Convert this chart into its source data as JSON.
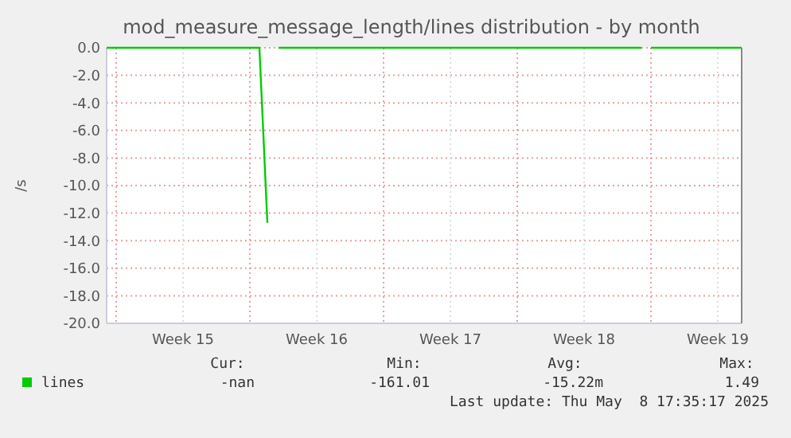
{
  "chart_data": {
    "type": "line",
    "title": "mod_measure_message_length/lines distribution - by month",
    "ylabel": "/s",
    "xlim": [
      "2025-04-06T12:00",
      "2025-05-09T18:00"
    ],
    "ylim": [
      -20,
      0
    ],
    "xticks": [
      {
        "value": "2025-04-07",
        "label": null
      },
      {
        "value": "2025-04-10T12:00",
        "label": "Week 15"
      },
      {
        "value": "2025-04-14",
        "label": null
      },
      {
        "value": "2025-04-17T12:00",
        "label": "Week 16"
      },
      {
        "value": "2025-04-21",
        "label": null
      },
      {
        "value": "2025-04-24T12:00",
        "label": "Week 17"
      },
      {
        "value": "2025-04-28",
        "label": null
      },
      {
        "value": "2025-05-01T12:00",
        "label": "Week 18"
      },
      {
        "value": "2025-05-05",
        "label": null
      },
      {
        "value": "2025-05-08T12:00",
        "label": "Week 19"
      }
    ],
    "yticks": [
      {
        "value": 0,
        "label": "0.0"
      },
      {
        "value": -2,
        "label": "-2.0"
      },
      {
        "value": -4,
        "label": "-4.0"
      },
      {
        "value": -6,
        "label": "-6.0"
      },
      {
        "value": -8,
        "label": "-8.0"
      },
      {
        "value": -10,
        "label": "-10.0"
      },
      {
        "value": -12,
        "label": "-12.0"
      },
      {
        "value": -14,
        "label": "-14.0"
      },
      {
        "value": -16,
        "label": "-16.0"
      },
      {
        "value": -18,
        "label": "-18.0"
      },
      {
        "value": -20,
        "label": "-20.0"
      }
    ],
    "grid": true,
    "legend": "bottom left",
    "marker": "none",
    "line_style": "solid",
    "series": [
      {
        "name": "lines",
        "color": "#00cc00",
        "x": [
          "2025-04-06T12:00",
          "2025-04-08",
          "2025-04-10",
          "2025-04-12",
          "2025-04-14T12:00",
          "2025-04-14T22:00",
          "2025-04-15T06:00",
          "2025-04-15T12:00",
          "2025-04-18",
          "2025-04-21",
          "2025-04-24",
          "2025-04-27",
          "2025-04-30",
          "2025-05-03",
          "2025-05-04T12:00",
          "2025-05-04T18:00",
          "2025-05-05",
          "2025-05-07",
          "2025-05-09T18:00"
        ],
        "values": [
          0,
          0,
          0,
          0,
          0,
          -12.7,
          null,
          0,
          0,
          0,
          0,
          0,
          0,
          0,
          0,
          null,
          0,
          0,
          0
        ]
      }
    ],
    "annotations": [
      "Cur:",
      "Min:",
      "Avg:",
      "Max:",
      "-nan",
      "-161.01",
      "-15.22m",
      "1.49",
      "Last update: Thu May  8 17:35:17 2025"
    ]
  }
}
